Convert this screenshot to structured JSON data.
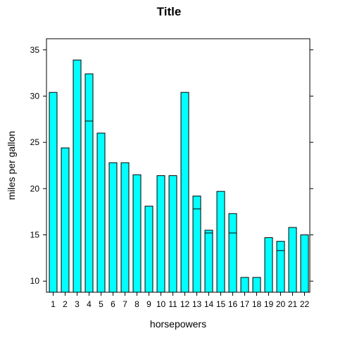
{
  "chart_data": {
    "type": "bar",
    "title": "Title",
    "xlabel": "horsepowers",
    "ylabel": "miles per gallon",
    "ylim": [
      8.8,
      36.2
    ],
    "yticks": [
      10,
      15,
      20,
      25,
      30,
      35
    ],
    "grid": false,
    "legend": "none",
    "colors": {
      "bar_fill": "#00ffff",
      "bar_stroke": "#000000",
      "axis": "#000000"
    },
    "categories": [
      "1",
      "2",
      "3",
      "4",
      "5",
      "6",
      "7",
      "8",
      "9",
      "10",
      "11",
      "12",
      "13",
      "14",
      "15",
      "16",
      "17",
      "18",
      "19",
      "20",
      "21",
      "22"
    ],
    "values": [
      30.4,
      24.4,
      33.9,
      32.4,
      26.0,
      22.8,
      22.8,
      21.5,
      18.1,
      21.4,
      21.4,
      30.4,
      19.2,
      15.5,
      19.7,
      17.3,
      10.4,
      10.4,
      14.7,
      14.3,
      15.8,
      15.0
    ],
    "inner_lines": [
      {
        "category": "4",
        "value": 27.3
      },
      {
        "category": "13",
        "value": 17.8
      },
      {
        "category": "14",
        "value": 15.2
      },
      {
        "category": "16",
        "value": 15.2
      },
      {
        "category": "20",
        "value": 13.3
      }
    ]
  }
}
